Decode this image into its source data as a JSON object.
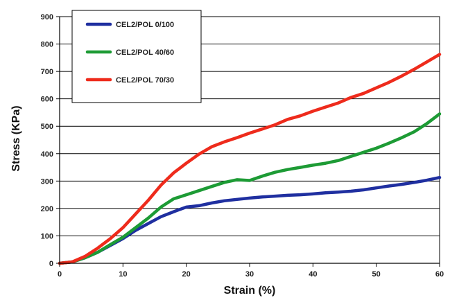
{
  "chart_data": {
    "type": "line",
    "xlabel": "Strain (%)",
    "ylabel": "Stress (KPa)",
    "xlim": [
      0,
      60
    ],
    "ylim": [
      0,
      900
    ],
    "xticks": [
      0,
      10,
      20,
      30,
      40,
      50,
      60
    ],
    "yticks": [
      0,
      100,
      200,
      300,
      400,
      500,
      600,
      700,
      800,
      900
    ],
    "grid": "horizontal",
    "legend_position": "top-left",
    "series": [
      {
        "name": "CEL2/POL 0/100",
        "color": "#1f2fa0",
        "x": [
          0,
          2,
          4,
          6,
          8,
          10,
          12,
          14,
          16,
          18,
          20,
          22,
          24,
          26,
          28,
          30,
          32,
          34,
          36,
          38,
          40,
          42,
          44,
          46,
          48,
          50,
          52,
          54,
          56,
          58,
          60
        ],
        "y": [
          0,
          5,
          20,
          40,
          65,
          90,
          120,
          145,
          170,
          188,
          205,
          210,
          220,
          228,
          233,
          238,
          242,
          245,
          248,
          250,
          253,
          257,
          260,
          263,
          268,
          275,
          282,
          288,
          295,
          303,
          313
        ]
      },
      {
        "name": "CEL2/POL 40/60",
        "color": "#1d9b35",
        "x": [
          0,
          2,
          4,
          6,
          8,
          10,
          12,
          14,
          16,
          18,
          20,
          22,
          24,
          26,
          28,
          30,
          32,
          34,
          36,
          38,
          40,
          42,
          44,
          46,
          48,
          50,
          52,
          54,
          56,
          58,
          60
        ],
        "y": [
          0,
          5,
          20,
          40,
          68,
          95,
          130,
          165,
          205,
          235,
          250,
          265,
          280,
          295,
          305,
          302,
          318,
          332,
          342,
          350,
          358,
          365,
          375,
          390,
          405,
          420,
          438,
          458,
          480,
          510,
          545
        ]
      },
      {
        "name": "CEL2/POL 70/30",
        "color": "#ee2b1c",
        "x": [
          0,
          2,
          4,
          6,
          8,
          10,
          12,
          14,
          16,
          18,
          20,
          22,
          24,
          26,
          28,
          30,
          32,
          34,
          36,
          38,
          40,
          42,
          44,
          46,
          48,
          50,
          52,
          54,
          56,
          58,
          60
        ],
        "y": [
          0,
          5,
          25,
          55,
          90,
          130,
          180,
          230,
          285,
          330,
          365,
          398,
          425,
          443,
          458,
          475,
          490,
          505,
          525,
          538,
          555,
          570,
          585,
          605,
          620,
          640,
          660,
          683,
          708,
          735,
          762
        ]
      }
    ]
  }
}
